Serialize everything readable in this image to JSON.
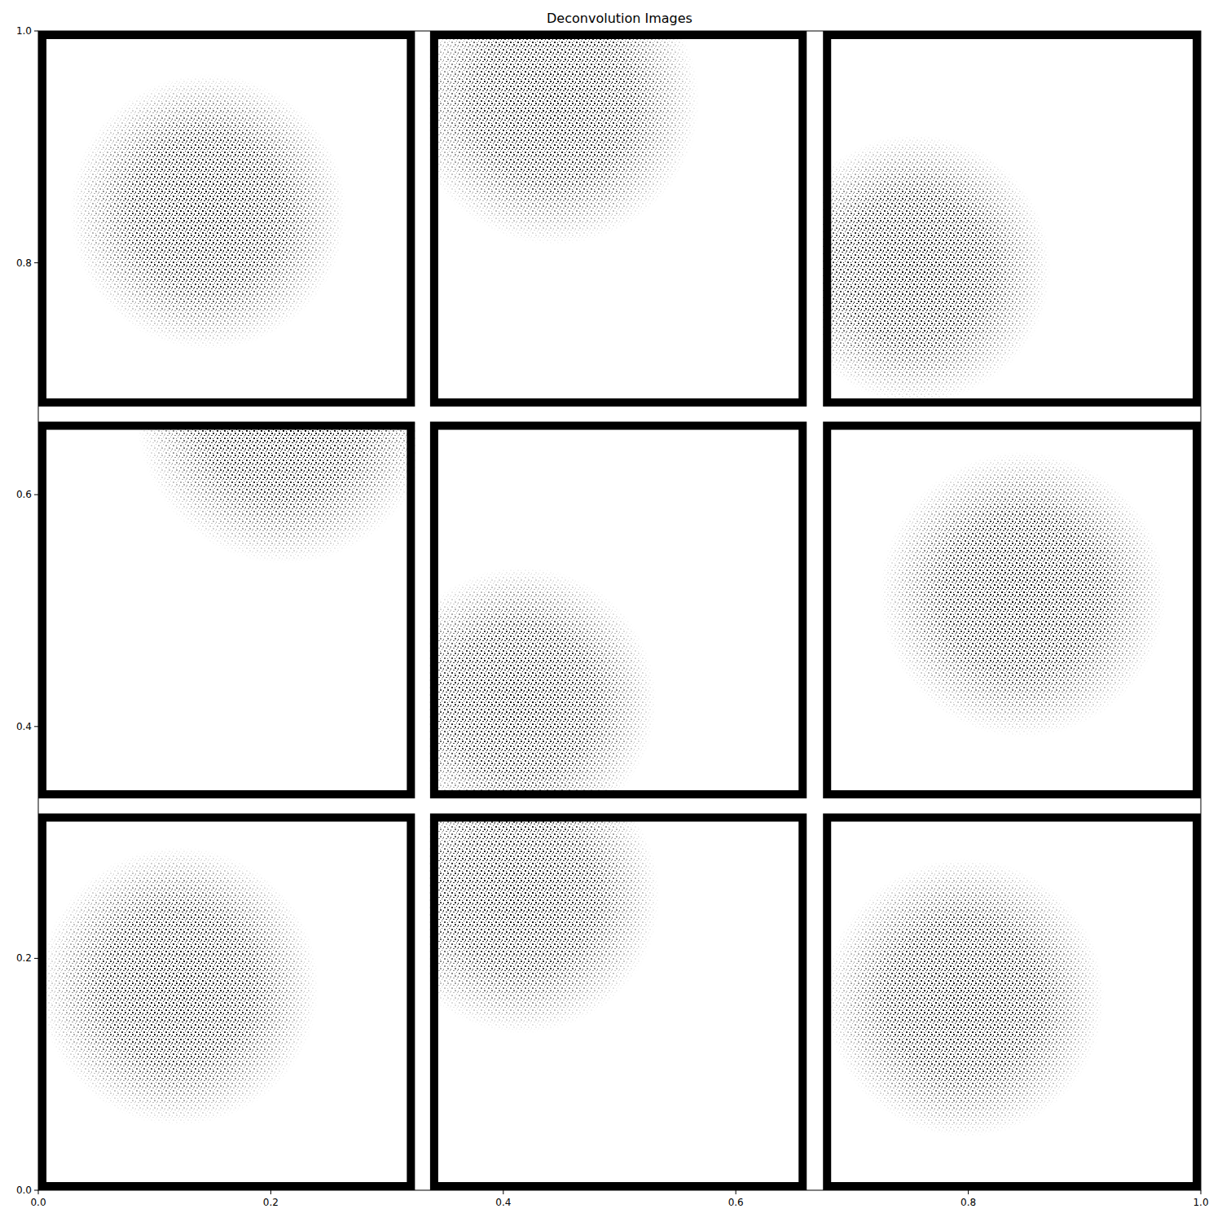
{
  "chart_data": {
    "type": "image",
    "title": "Deconvolution Images",
    "xlim": [
      0,
      1
    ],
    "ylim": [
      0,
      1
    ],
    "xticks": [
      {
        "value": 0,
        "label": "0.0"
      },
      {
        "value": 0.2,
        "label": "0.2"
      },
      {
        "value": 0.4,
        "label": "0.4"
      },
      {
        "value": 0.6,
        "label": "0.6"
      },
      {
        "value": 0.8,
        "label": "0.8"
      },
      {
        "value": 1,
        "label": "1.0"
      }
    ],
    "yticks": [
      {
        "value": 0,
        "label": "0.0"
      },
      {
        "value": 0.2,
        "label": "0.2"
      },
      {
        "value": 0.4,
        "label": "0.4"
      },
      {
        "value": 0.6,
        "label": "0.6"
      },
      {
        "value": 0.8,
        "label": "0.8"
      },
      {
        "value": 1,
        "label": "1.0"
      }
    ],
    "panels": [
      {
        "extent": [
          0,
          0.324,
          0.676,
          1
        ],
        "blob": {
          "x": 0.146,
          "y": 0.844,
          "radius": 0.082
        }
      },
      {
        "extent": [
          0.337,
          0.661,
          0.676,
          1
        ],
        "blob": {
          "x": 0.444,
          "y": 0.94,
          "radius": 0.086
        }
      },
      {
        "extent": [
          0.675,
          1,
          0.676,
          1
        ],
        "blob": {
          "x": 0.755,
          "y": 0.795,
          "radius": 0.08
        }
      },
      {
        "extent": [
          0,
          0.324,
          0.338,
          0.663
        ],
        "blob": {
          "x": 0.212,
          "y": 0.668,
          "radius": 0.088
        }
      },
      {
        "extent": [
          0.337,
          0.661,
          0.338,
          0.663
        ],
        "blob": {
          "x": 0.416,
          "y": 0.422,
          "radius": 0.08
        }
      },
      {
        "extent": [
          0.675,
          1,
          0.338,
          0.663
        ],
        "blob": {
          "x": 0.847,
          "y": 0.514,
          "radius": 0.085
        }
      },
      {
        "extent": [
          0,
          0.324,
          0,
          0.325
        ],
        "blob": {
          "x": 0.121,
          "y": 0.176,
          "radius": 0.083
        }
      },
      {
        "extent": [
          0.337,
          0.661,
          0,
          0.325
        ],
        "blob": {
          "x": 0.416,
          "y": 0.254,
          "radius": 0.082
        }
      },
      {
        "extent": [
          0.675,
          1,
          0,
          0.325
        ],
        "blob": {
          "x": 0.797,
          "y": 0.166,
          "radius": 0.083
        }
      }
    ]
  }
}
